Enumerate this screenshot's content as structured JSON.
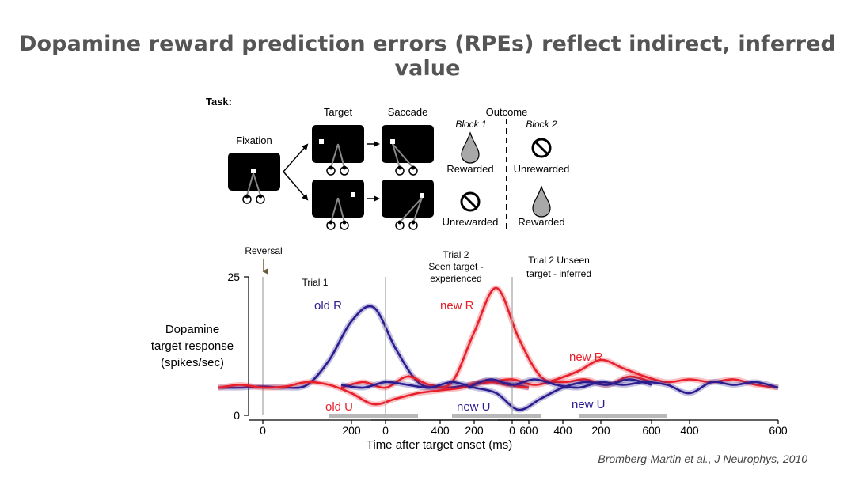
{
  "slide": {
    "title": "Dopamine reward prediction errors (RPEs) reflect indirect, inferred value",
    "citation": "Bromberg-Martin et al.,  J Neurophys, 2010"
  },
  "task": {
    "label": "Task:",
    "fixation": "Fixation",
    "target": "Target",
    "saccade": "Saccade",
    "outcome": "Outcome",
    "block1": "Block 1",
    "block2": "Block 2",
    "rewarded": "Rewarded",
    "unrewarded": "Unrewarded"
  },
  "chart_data": {
    "type": "line",
    "ylabel": [
      "Dopamine",
      "target response",
      "(spikes/sec)"
    ],
    "xlabel": "Time after target onset (ms)",
    "ylim": [
      0,
      25
    ],
    "yticks": [
      0,
      25
    ],
    "xlim": [
      -100,
      620
    ],
    "xticks": [
      0,
      200,
      400,
      600
    ],
    "reversal_label": "Reversal",
    "panels": [
      {
        "title": [
          "Trial 1"
        ],
        "x": [
          -100,
          -50,
          0,
          50,
          100,
          150,
          200,
          250,
          300,
          350,
          400,
          450,
          500,
          550,
          600
        ],
        "series": [
          {
            "name": "old R",
            "color": "#2b1d8f",
            "values": [
              5,
              5,
              5.2,
              5,
              5.5,
              10,
              17,
              19.5,
              12,
              6,
              5,
              5.3,
              6,
              5.8,
              5
            ]
          },
          {
            "name": "old U",
            "color": "#e8202b",
            "values": [
              5,
              5.5,
              5,
              5.2,
              6,
              5.5,
              4,
              2,
              3,
              4,
              4.5,
              5,
              6.2,
              5.5,
              5
            ]
          }
        ]
      },
      {
        "title": [
          "Trial 2",
          "Seen target -",
          "experienced"
        ],
        "x": [
          -100,
          -50,
          0,
          50,
          100,
          150,
          200,
          250,
          300,
          350,
          400,
          450,
          500,
          550,
          600
        ],
        "series": [
          {
            "name": "new R",
            "color": "#e8202b",
            "values": [
              5,
              6,
              5,
              7,
              5.5,
              6,
              15,
              23,
              14,
              7,
              6,
              6.5,
              5.5,
              7,
              6
            ]
          },
          {
            "name": "new U",
            "color": "#2b1d8f",
            "values": [
              5.5,
              5,
              6,
              5.5,
              5,
              6,
              5,
              4,
              1,
              3,
              5,
              6,
              5.5,
              6.5,
              5.5
            ]
          }
        ]
      },
      {
        "title": [
          "Trial 2 Unseen",
          "target - inferred"
        ],
        "x": [
          -100,
          -50,
          0,
          50,
          100,
          150,
          200,
          250,
          300,
          350,
          400,
          450,
          500,
          550,
          600
        ],
        "series": [
          {
            "name": "new R",
            "color": "#e8202b",
            "values": [
              5.5,
              6,
              6.5,
              5.5,
              6.5,
              8,
              10,
              8.5,
              7,
              6,
              6.5,
              6,
              6.5,
              5.5,
              5
            ]
          },
          {
            "name": "new U",
            "color": "#2b1d8f",
            "values": [
              5,
              6.5,
              5.5,
              6.5,
              5.5,
              5,
              6,
              5.5,
              6,
              5.5,
              4,
              6,
              5.5,
              6,
              5
            ]
          }
        ]
      }
    ]
  }
}
